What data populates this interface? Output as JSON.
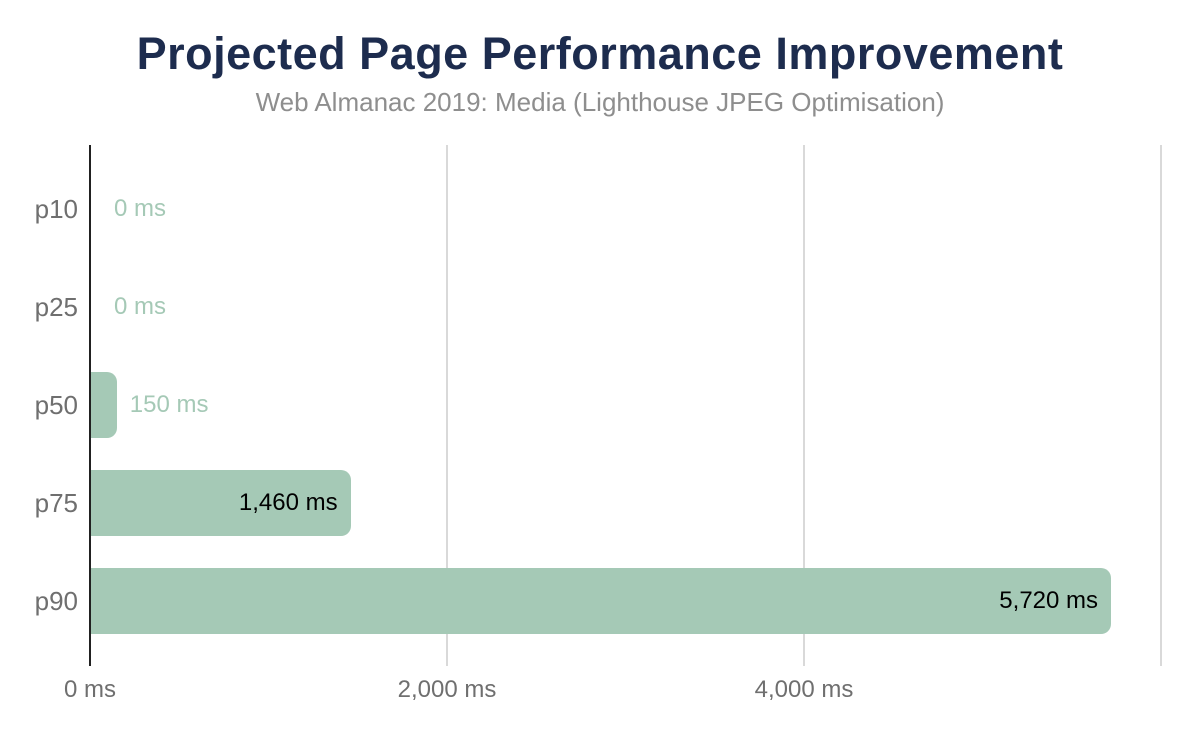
{
  "chart_data": {
    "type": "bar",
    "orientation": "horizontal",
    "title": "Projected Page Performance Improvement",
    "subtitle": "Web Almanac 2019: Media (Lighthouse JPEG Optimisation)",
    "categories": [
      "p10",
      "p25",
      "p50",
      "p75",
      "p90"
    ],
    "values": [
      0,
      0,
      150,
      1460,
      5720
    ],
    "value_labels": [
      "0 ms",
      "0 ms",
      "150 ms",
      "1,460 ms",
      "5,720 ms"
    ],
    "xlabel": "",
    "ylabel": "",
    "xlim": [
      0,
      6000
    ],
    "x_ticks": [
      {
        "value": 0,
        "label": "0 ms"
      },
      {
        "value": 2000,
        "label": "2,000 ms"
      },
      {
        "value": 4000,
        "label": "4,000 ms"
      },
      {
        "value": 6000,
        "label": ""
      }
    ],
    "grid": true,
    "legend": "none",
    "colors": {
      "background": "#ffffff",
      "bar": "#a5c9b6",
      "title": "#1d2c4e",
      "subtitle": "#8e8e8e",
      "axis_text": "#6f6f6f",
      "axis_line": "#212121",
      "gridline": "#d9d9d9",
      "label_inside": "#000000",
      "label_outside": "#a5c9b6"
    }
  }
}
